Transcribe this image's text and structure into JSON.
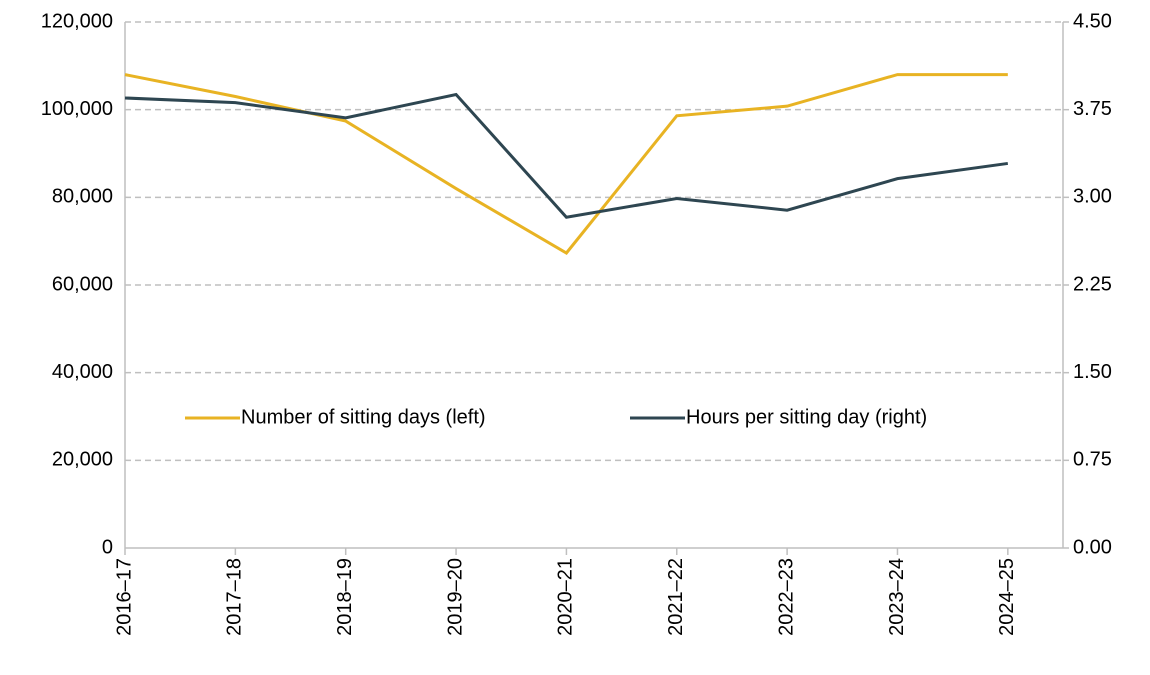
{
  "chart_data": {
    "type": "line",
    "categories": [
      "2016–17",
      "2017–18",
      "2018–19",
      "2019–20",
      "2020–21",
      "2021–22",
      "2022–23",
      "2023–24",
      "2024–25"
    ],
    "series": [
      {
        "name": "Number of sitting days (left)",
        "color": "#e8b323",
        "values": [
          108000,
          103000,
          97400,
          82000,
          67300,
          98600,
          100800,
          108000,
          108000
        ]
      },
      {
        "name": "Hours per sitting day (right)",
        "color": "#2e4651",
        "axis": "y2",
        "values": [
          3.85,
          3.81,
          3.68,
          3.88,
          2.83,
          2.99,
          2.89,
          3.16,
          3.29
        ]
      }
    ],
    "ylim": [
      0,
      120000
    ],
    "yticks": [
      0,
      {
        "value": 20000,
        "label": "20,000"
      },
      {
        "value": 40000,
        "label": "40,000"
      },
      {
        "value": 60000,
        "label": "60,000"
      },
      {
        "value": 80000,
        "label": "80,000"
      },
      {
        "value": 100000,
        "label": "100,000"
      },
      {
        "value": 120000,
        "label": "120,000"
      }
    ],
    "y2lim": [
      0,
      4.5
    ],
    "y2ticks": [
      {
        "value": 0,
        "label": "0.00"
      },
      0.75,
      {
        "value": 1.5,
        "label": "1.50"
      },
      2.25,
      {
        "value": 3,
        "label": "3.00"
      },
      3.75,
      {
        "value": 4.5,
        "label": "4.50"
      }
    ],
    "grid": true,
    "legend": "center"
  }
}
